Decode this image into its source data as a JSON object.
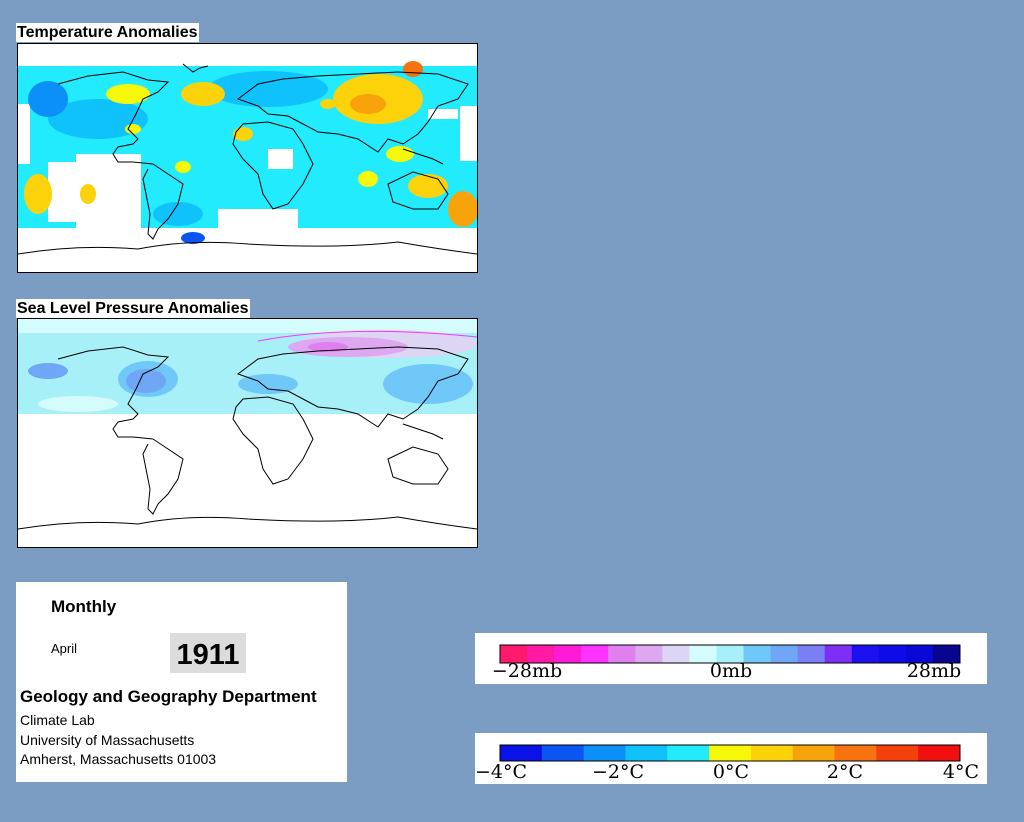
{
  "temperature_map": {
    "title": "Temperature Anomalies"
  },
  "pressure_map": {
    "title": "Sea Level Pressure Anomalies"
  },
  "info": {
    "frequency": "Monthly",
    "month": "April",
    "year": "1911",
    "department": "Geology and Geography Department",
    "lab": "Climate Lab",
    "university": "University of Massachusetts",
    "address": "Amherst, Massachusetts 01003"
  },
  "pressure_legend": {
    "labels": [
      "−28mb",
      "0mb",
      "28mb"
    ],
    "colors": [
      "#ff1a6e",
      "#ff1aa6",
      "#ff1ad6",
      "#ff33ff",
      "#e080ef",
      "#dda8f0",
      "#dcd6f4",
      "#d4fcfc",
      "#a8f0f8",
      "#6fc8f8",
      "#6fa6f5",
      "#7a7ff5",
      "#7f2ff5",
      "#1b10f0",
      "#0e0ae8",
      "#0a08d4",
      "#08068f"
    ]
  },
  "temperature_legend": {
    "labels": [
      "−4°C",
      "−2°C",
      "0°C",
      "2°C",
      "4°C"
    ],
    "colors": [
      "#0b12e6",
      "#0b55f2",
      "#0b8ff8",
      "#0fc2fb",
      "#21ebfc",
      "#f7f70a",
      "#fcd20a",
      "#f9a30a",
      "#f87210",
      "#f4400c",
      "#f01010"
    ]
  }
}
